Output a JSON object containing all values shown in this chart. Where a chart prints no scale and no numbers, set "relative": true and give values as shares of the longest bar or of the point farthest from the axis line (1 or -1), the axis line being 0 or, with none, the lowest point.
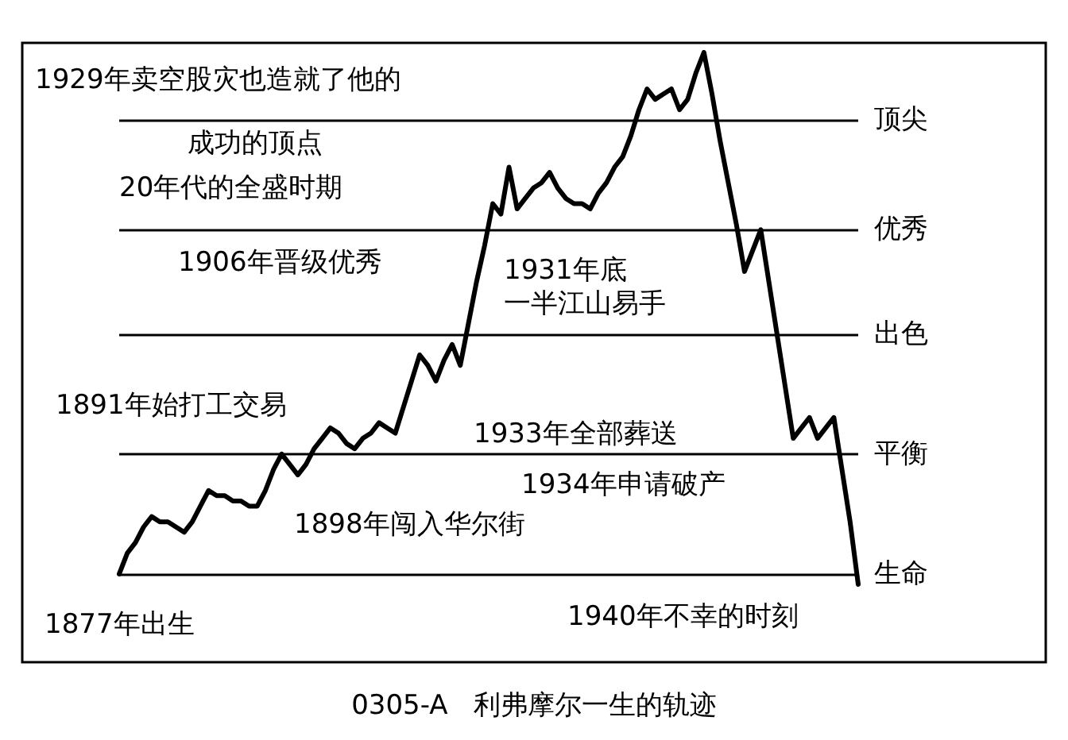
{
  "chart_data": {
    "type": "line",
    "relative": true,
    "title": "0305-A   利弗摩尔一生的轨迹",
    "categories": [
      null,
      null,
      null,
      null,
      null,
      null,
      null,
      null,
      null,
      null,
      null,
      null,
      null,
      null,
      null,
      null,
      null,
      null,
      null,
      null,
      null,
      null,
      null,
      null,
      null,
      null,
      null,
      null,
      null,
      null,
      null,
      null,
      null,
      null,
      null,
      null,
      null,
      null,
      null,
      null,
      null,
      null,
      null,
      null,
      null,
      null,
      null,
      null,
      null,
      null,
      null,
      null,
      null,
      null,
      null,
      null,
      null,
      null,
      null,
      null,
      null,
      null,
      null,
      null,
      null,
      null,
      null,
      null,
      null,
      null,
      null,
      null,
      null,
      null,
      null,
      null,
      null,
      null,
      null,
      null,
      null,
      null,
      null,
      null,
      null,
      null,
      null,
      null,
      null,
      null,
      null,
      null
    ],
    "series": [
      {
        "color": "#000000",
        "values": [
          0,
          0.04,
          0.06,
          0.09,
          0.11,
          0.1,
          0.1,
          0.09,
          0.08,
          0.1,
          0.13,
          0.16,
          0.15,
          0.15,
          0.14,
          0.14,
          0.13,
          0.13,
          0.16,
          0.2,
          0.23,
          0.21,
          0.19,
          0.21,
          0.24,
          0.26,
          0.28,
          0.27,
          0.25,
          0.24,
          0.26,
          0.27,
          0.29,
          0.28,
          0.27,
          0.32,
          0.37,
          0.42,
          0.4,
          0.37,
          0.41,
          0.44,
          0.4,
          0.48,
          0.56,
          0.63,
          0.71,
          0.69,
          0.78,
          0.7,
          0.72,
          0.74,
          0.75,
          0.77,
          0.74,
          0.72,
          0.71,
          0.71,
          0.7,
          0.73,
          0.75,
          0.78,
          0.8,
          0.84,
          0.89,
          0.93,
          0.91,
          0.92,
          0.93,
          0.89,
          0.91,
          0.96,
          1,
          0.92,
          0.83,
          0.75,
          0.67,
          0.58,
          0.62,
          0.66,
          0.56,
          0.46,
          0.36,
          0.26,
          0.28,
          0.3,
          0.26,
          0.28,
          0.3,
          0.2,
          0.1,
          -0.02
        ]
      }
    ],
    "ref_lines": [
      {
        "axis": "y",
        "value": 0.87,
        "label": "顶尖",
        "color": "#000000"
      },
      {
        "axis": "y",
        "value": 0.66,
        "label": "优秀",
        "color": "#000000"
      },
      {
        "axis": "y",
        "value": 0.46,
        "label": "出色",
        "color": "#000000"
      },
      {
        "axis": "y",
        "value": 0.23,
        "label": "平衡",
        "color": "#000000"
      },
      {
        "axis": "y",
        "value": 0,
        "label": "生命",
        "color": "#000000"
      }
    ],
    "annotations": [
      "1929年卖空股灾也造就了他的",
      "成功的顶点",
      "20年代的全盛时期",
      "1906年晋级优秀",
      "1891年始打工交易",
      "1898年闯入华尔街",
      "1877年出生",
      "1931年底",
      "一半江山易手",
      "1933年全部葬送",
      "1934年申请破产",
      "1940年不幸的时刻"
    ],
    "line_style": "solid"
  }
}
